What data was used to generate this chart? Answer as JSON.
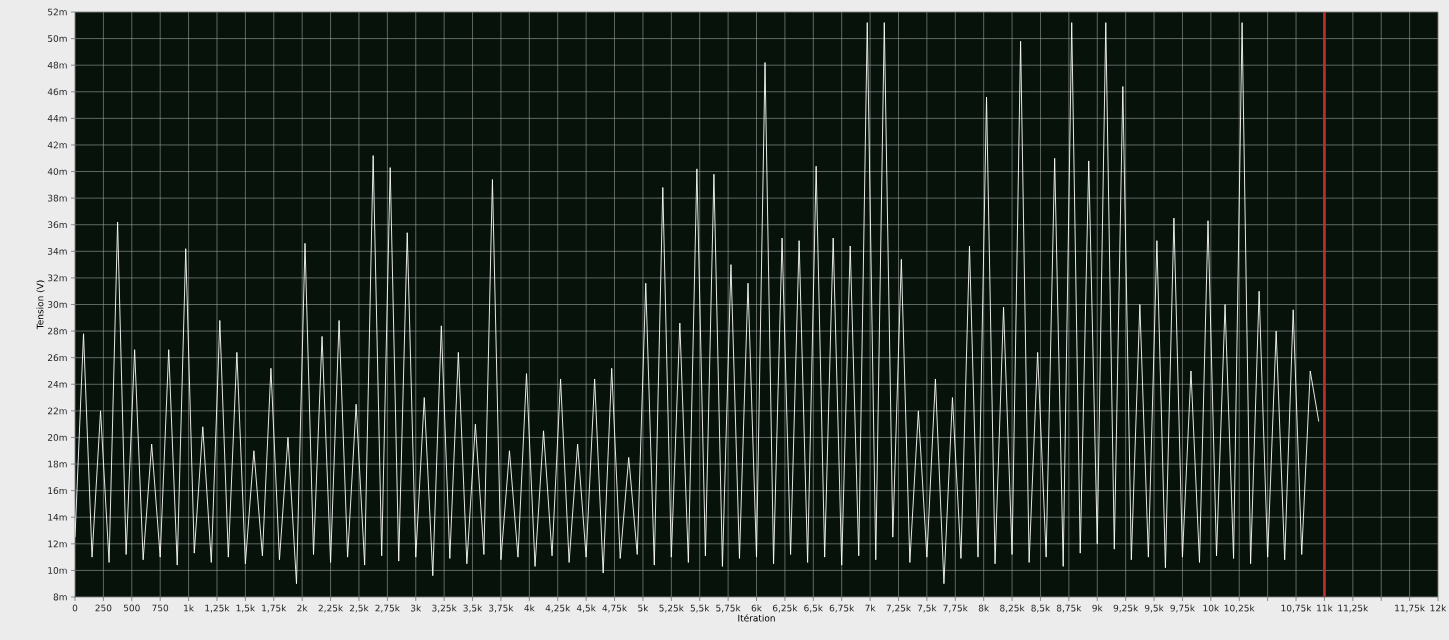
{
  "chart_data": {
    "type": "line",
    "xlabel": "Itération",
    "ylabel": "Tension (V)",
    "xlim": [
      0,
      12000
    ],
    "ylim": [
      8,
      52
    ],
    "xticks": [
      {
        "value": 0,
        "label": "0"
      },
      {
        "value": 250,
        "label": "250"
      },
      {
        "value": 500,
        "label": "500"
      },
      {
        "value": 750,
        "label": "750"
      },
      {
        "value": 1000,
        "label": "1k"
      },
      {
        "value": 1250,
        "label": "1,25k"
      },
      {
        "value": 1500,
        "label": "1,5k"
      },
      {
        "value": 1750,
        "label": "1,75k"
      },
      {
        "value": 2000,
        "label": "2k"
      },
      {
        "value": 2250,
        "label": "2,25k"
      },
      {
        "value": 2500,
        "label": "2,5k"
      },
      {
        "value": 2750,
        "label": "2,75k"
      },
      {
        "value": 3000,
        "label": "3k"
      },
      {
        "value": 3250,
        "label": "3,25k"
      },
      {
        "value": 3500,
        "label": "3,5k"
      },
      {
        "value": 3750,
        "label": "3,75k"
      },
      {
        "value": 4000,
        "label": "4k"
      },
      {
        "value": 4250,
        "label": "4,25k"
      },
      {
        "value": 4500,
        "label": "4,5k"
      },
      {
        "value": 4750,
        "label": "4,75k"
      },
      {
        "value": 5000,
        "label": "5k"
      },
      {
        "value": 5250,
        "label": "5,25k"
      },
      {
        "value": 5500,
        "label": "5,5k"
      },
      {
        "value": 5750,
        "label": "5,75k"
      },
      {
        "value": 6000,
        "label": "6k"
      },
      {
        "value": 6250,
        "label": "6,25k"
      },
      {
        "value": 6500,
        "label": "6,5k"
      },
      {
        "value": 6750,
        "label": "6,75k"
      },
      {
        "value": 7000,
        "label": "7k"
      },
      {
        "value": 7250,
        "label": "7,25k"
      },
      {
        "value": 7500,
        "label": "7,5k"
      },
      {
        "value": 7750,
        "label": "7,75k"
      },
      {
        "value": 8000,
        "label": "8k"
      },
      {
        "value": 8250,
        "label": "8,25k"
      },
      {
        "value": 8500,
        "label": "8,5k"
      },
      {
        "value": 8750,
        "label": "8,75k"
      },
      {
        "value": 9000,
        "label": "9k"
      },
      {
        "value": 9250,
        "label": "9,25k"
      },
      {
        "value": 9500,
        "label": "9,5k"
      },
      {
        "value": 9750,
        "label": "9,75k"
      },
      {
        "value": 10000,
        "label": "10k"
      },
      {
        "value": 10250,
        "label": "10,25k"
      },
      {
        "value": 10500,
        "label": null
      },
      {
        "value": 10750,
        "label": "10,75k"
      },
      {
        "value": 11000,
        "label": "11k"
      },
      {
        "value": 11250,
        "label": "11,25k"
      },
      {
        "value": 11500,
        "label": null
      },
      {
        "value": 11750,
        "label": "11,75k"
      },
      {
        "value": 12000,
        "label": "12k"
      }
    ],
    "yticks": [
      {
        "value": 8,
        "label": "8m"
      },
      {
        "value": 10,
        "label": "10m"
      },
      {
        "value": 12,
        "label": "12m"
      },
      {
        "value": 14,
        "label": "14m"
      },
      {
        "value": 16,
        "label": "16m"
      },
      {
        "value": 18,
        "label": "18m"
      },
      {
        "value": 20,
        "label": "20m"
      },
      {
        "value": 22,
        "label": "22m"
      },
      {
        "value": 24,
        "label": "24m"
      },
      {
        "value": 26,
        "label": "26m"
      },
      {
        "value": 28,
        "label": "28m"
      },
      {
        "value": 30,
        "label": "30m"
      },
      {
        "value": 32,
        "label": "32m"
      },
      {
        "value": 34,
        "label": "34m"
      },
      {
        "value": 36,
        "label": "36m"
      },
      {
        "value": 38,
        "label": "38m"
      },
      {
        "value": 40,
        "label": "40m"
      },
      {
        "value": 42,
        "label": "42m"
      },
      {
        "value": 44,
        "label": "44m"
      },
      {
        "value": 46,
        "label": "46m"
      },
      {
        "value": 48,
        "label": "48m"
      },
      {
        "value": 50,
        "label": "50m"
      },
      {
        "value": 52,
        "label": "52m"
      }
    ],
    "grid": true,
    "marker": "none",
    "line_style": "solid",
    "ref_lines": [
      {
        "axis": "x",
        "value": 11000,
        "color": "#c0302a"
      }
    ],
    "series": [
      {
        "color": "#ffffff",
        "x": [
          0,
          75,
          150,
          225,
          300,
          375,
          450,
          525,
          600,
          675,
          750,
          825,
          900,
          975,
          1050,
          1125,
          1200,
          1275,
          1350,
          1425,
          1500,
          1575,
          1650,
          1725,
          1800,
          1875,
          1950,
          2025,
          2100,
          2175,
          2250,
          2325,
          2400,
          2475,
          2550,
          2625,
          2700,
          2775,
          2850,
          2925,
          3000,
          3075,
          3150,
          3225,
          3300,
          3375,
          3450,
          3525,
          3600,
          3675,
          3750,
          3825,
          3900,
          3975,
          4050,
          4125,
          4200,
          4275,
          4350,
          4425,
          4500,
          4575,
          4650,
          4725,
          4800,
          4875,
          4950,
          5025,
          5100,
          5175,
          5250,
          5325,
          5400,
          5475,
          5550,
          5625,
          5700,
          5775,
          5850,
          5925,
          6000,
          6075,
          6150,
          6225,
          6300,
          6375,
          6450,
          6525,
          6600,
          6675,
          6750,
          6825,
          6900,
          6975,
          7050,
          7125,
          7200,
          7275,
          7350,
          7425,
          7500,
          7575,
          7650,
          7725,
          7800,
          7875,
          7950,
          8025,
          8100,
          8175,
          8250,
          8325,
          8400,
          8475,
          8550,
          8625,
          8700,
          8775,
          8850,
          8925,
          9000,
          9075,
          9150,
          9225,
          9300,
          9375,
          9450,
          9525,
          9600,
          9675,
          9750,
          9825,
          9900,
          9975,
          10050,
          10125,
          10200,
          10275,
          10350,
          10425,
          10500,
          10575,
          10650,
          10725,
          10800,
          10875,
          10950
        ],
        "values": [
          12.5,
          27.8,
          11.0,
          22.0,
          10.6,
          36.2,
          11.2,
          26.6,
          10.8,
          19.5,
          11.0,
          26.6,
          10.4,
          34.2,
          11.3,
          20.8,
          10.6,
          28.8,
          11.0,
          26.4,
          10.5,
          19.0,
          11.1,
          25.2,
          10.8,
          20.0,
          9.0,
          34.6,
          11.2,
          27.6,
          10.6,
          28.8,
          11.0,
          22.5,
          10.4,
          41.2,
          11.1,
          40.3,
          10.7,
          35.4,
          11.0,
          23.0,
          9.6,
          28.4,
          10.9,
          26.4,
          10.5,
          21.0,
          11.2,
          39.4,
          10.8,
          19.0,
          11.0,
          24.8,
          10.3,
          20.5,
          11.1,
          24.4,
          10.6,
          19.5,
          11.0,
          24.4,
          9.8,
          25.2,
          10.9,
          18.5,
          11.2,
          31.6,
          10.4,
          38.8,
          11.0,
          28.6,
          10.6,
          40.2,
          11.1,
          39.8,
          10.3,
          33.0,
          10.9,
          31.6,
          11.0,
          48.2,
          10.5,
          35.0,
          11.2,
          34.8,
          10.6,
          40.4,
          11.0,
          35.0,
          10.4,
          34.4,
          11.1,
          51.2,
          10.8,
          51.2,
          12.5,
          33.4,
          10.6,
          22.0,
          11.0,
          24.4,
          9.0,
          23.0,
          10.9,
          34.4,
          11.0,
          45.6,
          10.5,
          29.8,
          11.2,
          49.8,
          10.6,
          26.4,
          11.0,
          41.0,
          10.3,
          51.2,
          11.3,
          40.8,
          12.0,
          51.2,
          11.6,
          46.4,
          10.8,
          30.0,
          11.0,
          34.8,
          10.2,
          36.5,
          11.0,
          25.0,
          10.6,
          36.3,
          11.1,
          30.0,
          10.9,
          51.2,
          10.5,
          31.0,
          11.0,
          28.0,
          10.8,
          29.6,
          11.2,
          25.0,
          21.2
        ]
      }
    ]
  }
}
